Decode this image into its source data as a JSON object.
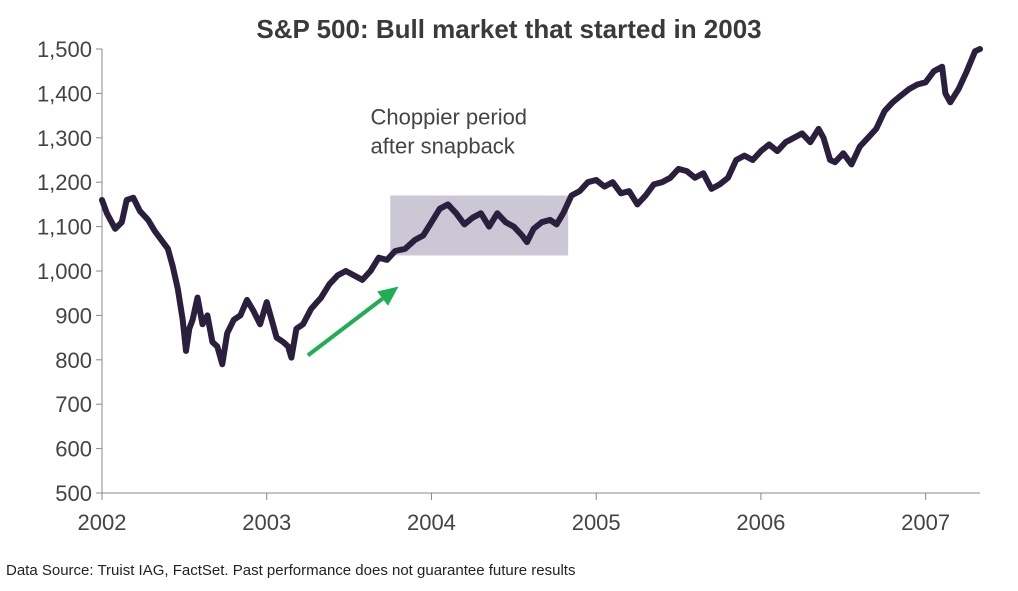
{
  "chart_data": {
    "type": "line",
    "title": "S&P 500: Bull market that started in 2003",
    "xlabel": "",
    "ylabel": "",
    "x_ticks": [
      "2002",
      "2003",
      "2004",
      "2005",
      "2006",
      "2007"
    ],
    "y_ticks": [
      "500",
      "600",
      "700",
      "800",
      "900",
      "1,000",
      "1,100",
      "1,200",
      "1,300",
      "1,400",
      "1,500"
    ],
    "xlim": [
      2002.0,
      2007.33
    ],
    "ylim": [
      500,
      1500
    ],
    "grid": false,
    "legend": "none",
    "series": [
      {
        "name": "",
        "color": "#2a1f3d",
        "points": [
          [
            2002.0,
            1160
          ],
          [
            2002.03,
            1130
          ],
          [
            2002.08,
            1095
          ],
          [
            2002.12,
            1110
          ],
          [
            2002.15,
            1160
          ],
          [
            2002.19,
            1165
          ],
          [
            2002.23,
            1135
          ],
          [
            2002.28,
            1115
          ],
          [
            2002.32,
            1090
          ],
          [
            2002.36,
            1070
          ],
          [
            2002.4,
            1050
          ],
          [
            2002.43,
            1010
          ],
          [
            2002.46,
            960
          ],
          [
            2002.49,
            890
          ],
          [
            2002.51,
            820
          ],
          [
            2002.53,
            870
          ],
          [
            2002.55,
            890
          ],
          [
            2002.58,
            940
          ],
          [
            2002.61,
            880
          ],
          [
            2002.64,
            900
          ],
          [
            2002.67,
            840
          ],
          [
            2002.7,
            830
          ],
          [
            2002.73,
            790
          ],
          [
            2002.76,
            860
          ],
          [
            2002.8,
            890
          ],
          [
            2002.84,
            900
          ],
          [
            2002.88,
            935
          ],
          [
            2002.92,
            910
          ],
          [
            2002.96,
            880
          ],
          [
            2003.0,
            930
          ],
          [
            2003.03,
            890
          ],
          [
            2003.06,
            850
          ],
          [
            2003.1,
            840
          ],
          [
            2003.13,
            830
          ],
          [
            2003.15,
            805
          ],
          [
            2003.18,
            870
          ],
          [
            2003.22,
            880
          ],
          [
            2003.27,
            915
          ],
          [
            2003.33,
            940
          ],
          [
            2003.38,
            970
          ],
          [
            2003.43,
            990
          ],
          [
            2003.48,
            1000
          ],
          [
            2003.53,
            990
          ],
          [
            2003.58,
            980
          ],
          [
            2003.63,
            1000
          ],
          [
            2003.68,
            1030
          ],
          [
            2003.73,
            1025
          ],
          [
            2003.78,
            1045
          ],
          [
            2003.84,
            1050
          ],
          [
            2003.9,
            1070
          ],
          [
            2003.95,
            1080
          ],
          [
            2004.0,
            1110
          ],
          [
            2004.05,
            1140
          ],
          [
            2004.1,
            1150
          ],
          [
            2004.15,
            1130
          ],
          [
            2004.2,
            1105
          ],
          [
            2004.25,
            1120
          ],
          [
            2004.3,
            1130
          ],
          [
            2004.35,
            1100
          ],
          [
            2004.4,
            1130
          ],
          [
            2004.45,
            1110
          ],
          [
            2004.5,
            1100
          ],
          [
            2004.55,
            1080
          ],
          [
            2004.58,
            1065
          ],
          [
            2004.62,
            1095
          ],
          [
            2004.67,
            1110
          ],
          [
            2004.72,
            1115
          ],
          [
            2004.76,
            1105
          ],
          [
            2004.8,
            1130
          ],
          [
            2004.85,
            1170
          ],
          [
            2004.9,
            1180
          ],
          [
            2004.95,
            1200
          ],
          [
            2005.0,
            1205
          ],
          [
            2005.05,
            1190
          ],
          [
            2005.1,
            1200
          ],
          [
            2005.15,
            1175
          ],
          [
            2005.2,
            1180
          ],
          [
            2005.25,
            1150
          ],
          [
            2005.3,
            1170
          ],
          [
            2005.35,
            1195
          ],
          [
            2005.4,
            1200
          ],
          [
            2005.45,
            1210
          ],
          [
            2005.5,
            1230
          ],
          [
            2005.55,
            1225
          ],
          [
            2005.6,
            1210
          ],
          [
            2005.65,
            1220
          ],
          [
            2005.7,
            1185
          ],
          [
            2005.75,
            1195
          ],
          [
            2005.8,
            1210
          ],
          [
            2005.85,
            1250
          ],
          [
            2005.9,
            1260
          ],
          [
            2005.95,
            1250
          ],
          [
            2006.0,
            1270
          ],
          [
            2006.05,
            1285
          ],
          [
            2006.1,
            1270
          ],
          [
            2006.15,
            1290
          ],
          [
            2006.2,
            1300
          ],
          [
            2006.25,
            1310
          ],
          [
            2006.3,
            1290
          ],
          [
            2006.35,
            1320
          ],
          [
            2006.38,
            1300
          ],
          [
            2006.42,
            1250
          ],
          [
            2006.45,
            1245
          ],
          [
            2006.5,
            1265
          ],
          [
            2006.55,
            1240
          ],
          [
            2006.6,
            1280
          ],
          [
            2006.65,
            1300
          ],
          [
            2006.7,
            1320
          ],
          [
            2006.75,
            1360
          ],
          [
            2006.8,
            1380
          ],
          [
            2006.85,
            1395
          ],
          [
            2006.9,
            1410
          ],
          [
            2006.95,
            1420
          ],
          [
            2007.0,
            1425
          ],
          [
            2007.05,
            1450
          ],
          [
            2007.1,
            1460
          ],
          [
            2007.12,
            1400
          ],
          [
            2007.15,
            1380
          ],
          [
            2007.2,
            1410
          ],
          [
            2007.25,
            1450
          ],
          [
            2007.3,
            1495
          ],
          [
            2007.33,
            1500
          ]
        ]
      }
    ],
    "annotations": [
      {
        "type": "text",
        "lines": [
          "Choppier period",
          "after snapback"
        ],
        "x": 2003.63,
        "y": 1330
      },
      {
        "type": "shaded-box",
        "x": [
          2003.75,
          2004.83
        ],
        "y": [
          1035,
          1170
        ],
        "color": "#ccc7d4"
      },
      {
        "type": "arrow",
        "from": [
          2003.25,
          810
        ],
        "to": [
          2003.8,
          965
        ],
        "color": "#1fae55"
      }
    ]
  },
  "source_note": "Data Source: Truist IAG, FactSet. Past performance does not guarantee future results"
}
